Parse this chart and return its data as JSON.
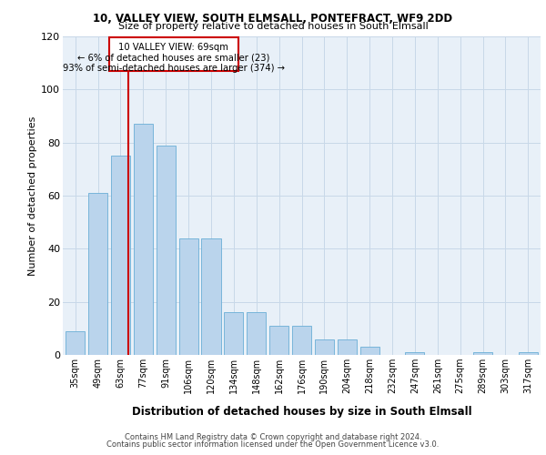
{
  "title1": "10, VALLEY VIEW, SOUTH ELMSALL, PONTEFRACT, WF9 2DD",
  "title2": "Size of property relative to detached houses in South Elmsall",
  "xlabel": "Distribution of detached houses by size in South Elmsall",
  "ylabel": "Number of detached properties",
  "categories": [
    "35sqm",
    "49sqm",
    "63sqm",
    "77sqm",
    "91sqm",
    "106sqm",
    "120sqm",
    "134sqm",
    "148sqm",
    "162sqm",
    "176sqm",
    "190sqm",
    "204sqm",
    "218sqm",
    "232sqm",
    "247sqm",
    "261sqm",
    "275sqm",
    "289sqm",
    "303sqm",
    "317sqm"
  ],
  "values": [
    9,
    61,
    75,
    87,
    79,
    44,
    44,
    16,
    16,
    11,
    11,
    6,
    6,
    3,
    0,
    1,
    0,
    0,
    1,
    0,
    1
  ],
  "bar_color": "#bad4ec",
  "bar_edge_color": "#6aaed6",
  "grid_color": "#c8d8e8",
  "bg_color": "#e8f0f8",
  "annotation_box_color": "#cc0000",
  "subject_line_color": "#cc0000",
  "subject_bar_index": 2,
  "ann_line1": "10 VALLEY VIEW: 69sqm",
  "ann_line2": "← 6% of detached houses are smaller (23)",
  "ann_line3": "93% of semi-detached houses are larger (374) →",
  "footer1": "Contains HM Land Registry data © Crown copyright and database right 2024.",
  "footer2": "Contains public sector information licensed under the Open Government Licence v3.0.",
  "ylim": [
    0,
    120
  ],
  "yticks": [
    0,
    20,
    40,
    60,
    80,
    100,
    120
  ]
}
